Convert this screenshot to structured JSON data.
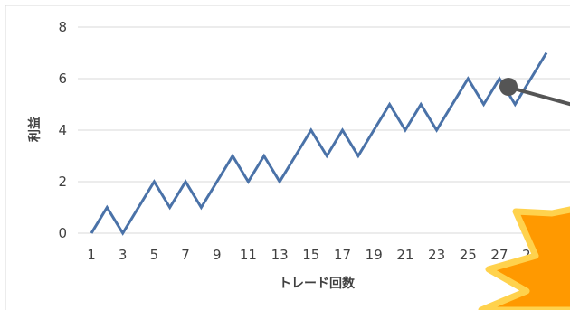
{
  "chart_data": {
    "type": "line",
    "xlabel": "トレード回数",
    "ylabel": "利益",
    "ylim": [
      0,
      8
    ],
    "y_ticks": [
      "0",
      "2",
      "4",
      "6",
      "8"
    ],
    "x_tick_labels": [
      "1",
      "3",
      "5",
      "7",
      "9",
      "11",
      "13",
      "15",
      "17",
      "19",
      "21",
      "23",
      "25",
      "27",
      "29"
    ],
    "grid": true,
    "legend": "none",
    "series": [
      {
        "color": "#4a72a8",
        "x": [
          1,
          2,
          3,
          4,
          5,
          6,
          7,
          8,
          9,
          10,
          11,
          12,
          13,
          14,
          15,
          16,
          17,
          18,
          19,
          20,
          21,
          22,
          23,
          24,
          25,
          26,
          27,
          28,
          29,
          30
        ],
        "values": [
          0,
          1,
          0,
          1,
          2,
          1,
          2,
          1,
          2,
          3,
          2,
          3,
          2,
          3,
          4,
          3,
          4,
          3,
          4,
          5,
          4,
          5,
          4,
          5,
          6,
          5,
          6,
          5,
          6,
          7
        ]
      }
    ]
  },
  "decorations": {
    "pointer_color": "#555555",
    "burst_fill": "#ff9900",
    "burst_stroke": "#ffd24d"
  }
}
